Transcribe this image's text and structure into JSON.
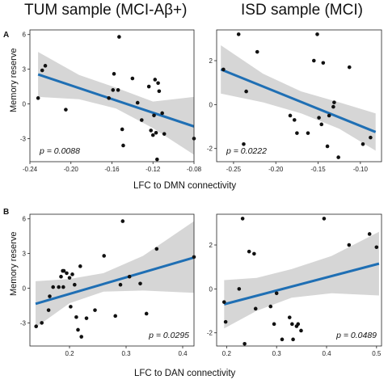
{
  "titles": {
    "left": "TUM sample (MCI-Aβ+)",
    "right": "ISD sample (MCI)"
  },
  "rows": [
    {
      "letter": "A",
      "xlabel": "LFC to DMN  connectivity",
      "ylabel": "Memory reserve"
    },
    {
      "letter": "B",
      "xlabel": "LFC to DAN  connectivity",
      "ylabel": "Memory reserve"
    }
  ],
  "colors": {
    "line": "#1f6fb4",
    "band": "#d6d6d6",
    "point": "#111111"
  },
  "chart_data": [
    {
      "type": "scatter",
      "panel": "A-left",
      "pvalue": "p = 0.0088",
      "xlim": [
        -0.24,
        -0.08
      ],
      "ylim": [
        -5,
        6.4
      ],
      "xticks": [
        -0.24,
        -0.2,
        -0.16,
        -0.12,
        -0.08
      ],
      "xtick_labels": [
        "-0.24",
        "-0.20",
        "-0.16",
        "-0.12",
        "-0.08"
      ],
      "yticks": [
        -3,
        0,
        3,
        6
      ],
      "ytick_labels": [
        "-3",
        "0",
        "3",
        "6"
      ],
      "points": [
        [
          -0.232,
          0.5
        ],
        [
          -0.228,
          2.9
        ],
        [
          -0.225,
          3.3
        ],
        [
          -0.205,
          -0.5
        ],
        [
          -0.163,
          0.5
        ],
        [
          -0.159,
          1.2
        ],
        [
          -0.158,
          2.6
        ],
        [
          -0.154,
          1.2
        ],
        [
          -0.153,
          5.8
        ],
        [
          -0.15,
          -2.2
        ],
        [
          -0.149,
          -3.6
        ],
        [
          -0.14,
          2.2
        ],
        [
          -0.135,
          0.1
        ],
        [
          -0.131,
          -1.4
        ],
        [
          -0.124,
          1.5
        ],
        [
          -0.122,
          -2.3
        ],
        [
          -0.12,
          -2.7
        ],
        [
          -0.119,
          -1.0
        ],
        [
          -0.118,
          2.1
        ],
        [
          -0.117,
          -2.5
        ],
        [
          -0.116,
          -4.8
        ],
        [
          -0.115,
          1.8
        ],
        [
          -0.114,
          1.1
        ],
        [
          -0.111,
          -0.8
        ],
        [
          -0.109,
          -2.6
        ],
        [
          -0.08,
          -3.0
        ]
      ],
      "fit": {
        "x": [
          -0.232,
          -0.08
        ],
        "y": [
          2.55,
          -1.95
        ]
      },
      "band": {
        "x": [
          -0.232,
          -0.192,
          -0.156,
          -0.12,
          -0.08
        ],
        "lower": [
          0.6,
          0.4,
          -0.4,
          -2.1,
          -4.4
        ],
        "upper": [
          4.5,
          2.5,
          1.4,
          0.2,
          0.6
        ]
      }
    },
    {
      "type": "scatter",
      "panel": "A-right",
      "pvalue": "p = 0.0222",
      "xlim": [
        -0.27,
        -0.075
      ],
      "ylim": [
        -2.6,
        3.4
      ],
      "xticks": [
        -0.25,
        -0.2,
        -0.15,
        -0.1
      ],
      "xtick_labels": [
        "-0.25",
        "-0.20",
        "-0.15",
        "-0.10"
      ],
      "yticks": [
        -2,
        0,
        2
      ],
      "ytick_labels": [
        "-2",
        "0",
        "2"
      ],
      "points": [
        [
          -0.262,
          1.6
        ],
        [
          -0.244,
          3.2
        ],
        [
          -0.238,
          -1.8
        ],
        [
          -0.235,
          0.6
        ],
        [
          -0.222,
          2.4
        ],
        [
          -0.183,
          -0.5
        ],
        [
          -0.178,
          -0.7
        ],
        [
          -0.175,
          -1.3
        ],
        [
          -0.162,
          -1.3
        ],
        [
          -0.155,
          2.0
        ],
        [
          -0.151,
          3.2
        ],
        [
          -0.149,
          -0.6
        ],
        [
          -0.146,
          -0.9
        ],
        [
          -0.144,
          1.9
        ],
        [
          -0.139,
          -1.9
        ],
        [
          -0.137,
          -0.5
        ],
        [
          -0.132,
          -0.1
        ],
        [
          -0.131,
          0.1
        ],
        [
          -0.126,
          -2.4
        ],
        [
          -0.113,
          1.7
        ],
        [
          -0.097,
          -1.8
        ],
        [
          -0.088,
          -1.5
        ]
      ],
      "fit": {
        "x": [
          -0.265,
          -0.082
        ],
        "y": [
          1.6,
          -1.25
        ]
      },
      "band": {
        "x": [
          -0.265,
          -0.215,
          -0.17,
          -0.125,
          -0.082
        ],
        "lower": [
          0.5,
          0.1,
          -0.4,
          -1.1,
          -2.1
        ],
        "upper": [
          2.7,
          1.4,
          0.6,
          0.1,
          -0.4
        ]
      }
    },
    {
      "type": "scatter",
      "panel": "B-left",
      "pvalue": "p = 0.0295",
      "xlim": [
        0.13,
        0.42
      ],
      "ylim": [
        -5,
        6.4
      ],
      "xticks": [
        0.2,
        0.3,
        0.4
      ],
      "xtick_labels": [
        "0.2",
        "0.3",
        "0.4"
      ],
      "yticks": [
        -3,
        0,
        3,
        6
      ],
      "ytick_labels": [
        "-3",
        "0",
        "3",
        "6"
      ],
      "points": [
        [
          0.141,
          -3.3
        ],
        [
          0.151,
          -3.0
        ],
        [
          0.163,
          -1.9
        ],
        [
          0.165,
          -0.7
        ],
        [
          0.171,
          0.1
        ],
        [
          0.181,
          0.1
        ],
        [
          0.185,
          1.0
        ],
        [
          0.188,
          1.5
        ],
        [
          0.189,
          0.1
        ],
        [
          0.19,
          1.5
        ],
        [
          0.195,
          1.3
        ],
        [
          0.2,
          0.9
        ],
        [
          0.202,
          -1.6
        ],
        [
          0.205,
          1.2
        ],
        [
          0.209,
          0.3
        ],
        [
          0.212,
          -2.5
        ],
        [
          0.215,
          -3.6
        ],
        [
          0.219,
          1.9
        ],
        [
          0.221,
          -4.2
        ],
        [
          0.23,
          -2.6
        ],
        [
          0.245,
          -1.9
        ],
        [
          0.261,
          2.8
        ],
        [
          0.281,
          -2.4
        ],
        [
          0.29,
          0.3
        ],
        [
          0.294,
          5.8
        ],
        [
          0.306,
          1.0
        ],
        [
          0.325,
          0.4
        ],
        [
          0.336,
          -2.2
        ],
        [
          0.354,
          3.4
        ],
        [
          0.42,
          2.7
        ]
      ],
      "fit": {
        "x": [
          0.14,
          0.42
        ],
        "y": [
          -1.35,
          2.65
        ]
      },
      "band": {
        "x": [
          0.14,
          0.2,
          0.26,
          0.33,
          0.42
        ],
        "lower": [
          -3.4,
          -1.3,
          -0.3,
          -0.2,
          -0.4
        ],
        "upper": [
          0.6,
          0.8,
          1.3,
          2.8,
          5.8
        ]
      }
    },
    {
      "type": "scatter",
      "panel": "B-right",
      "pvalue": "p = 0.0489",
      "xlim": [
        0.18,
        0.51
      ],
      "ylim": [
        -2.6,
        3.4
      ],
      "xticks": [
        0.2,
        0.3,
        0.4,
        0.5
      ],
      "xtick_labels": [
        "0.2",
        "0.3",
        "0.4",
        "0.5"
      ],
      "yticks": [
        -2,
        0,
        2
      ],
      "ytick_labels": [
        "-2",
        "0",
        "2"
      ],
      "points": [
        [
          0.195,
          -0.6
        ],
        [
          0.198,
          -1.5
        ],
        [
          0.225,
          0.0
        ],
        [
          0.232,
          3.2
        ],
        [
          0.236,
          -2.5
        ],
        [
          0.245,
          1.7
        ],
        [
          0.255,
          1.6
        ],
        [
          0.258,
          -0.9
        ],
        [
          0.288,
          -0.8
        ],
        [
          0.295,
          -1.6
        ],
        [
          0.3,
          -0.2
        ],
        [
          0.311,
          -2.3
        ],
        [
          0.326,
          -1.3
        ],
        [
          0.331,
          -1.6
        ],
        [
          0.333,
          -2.3
        ],
        [
          0.34,
          -1.7
        ],
        [
          0.343,
          -1.6
        ],
        [
          0.349,
          -1.9
        ],
        [
          0.395,
          3.2
        ],
        [
          0.445,
          2.0
        ],
        [
          0.486,
          2.5
        ],
        [
          0.5,
          1.9
        ]
      ],
      "fit": {
        "x": [
          0.195,
          0.505
        ],
        "y": [
          -0.7,
          1.15
        ]
      },
      "band": {
        "x": [
          0.195,
          0.26,
          0.33,
          0.41,
          0.505
        ],
        "lower": [
          -1.8,
          -1.0,
          -0.4,
          -0.2,
          -0.3
        ],
        "upper": [
          0.4,
          0.5,
          0.9,
          1.5,
          2.6
        ]
      }
    }
  ]
}
